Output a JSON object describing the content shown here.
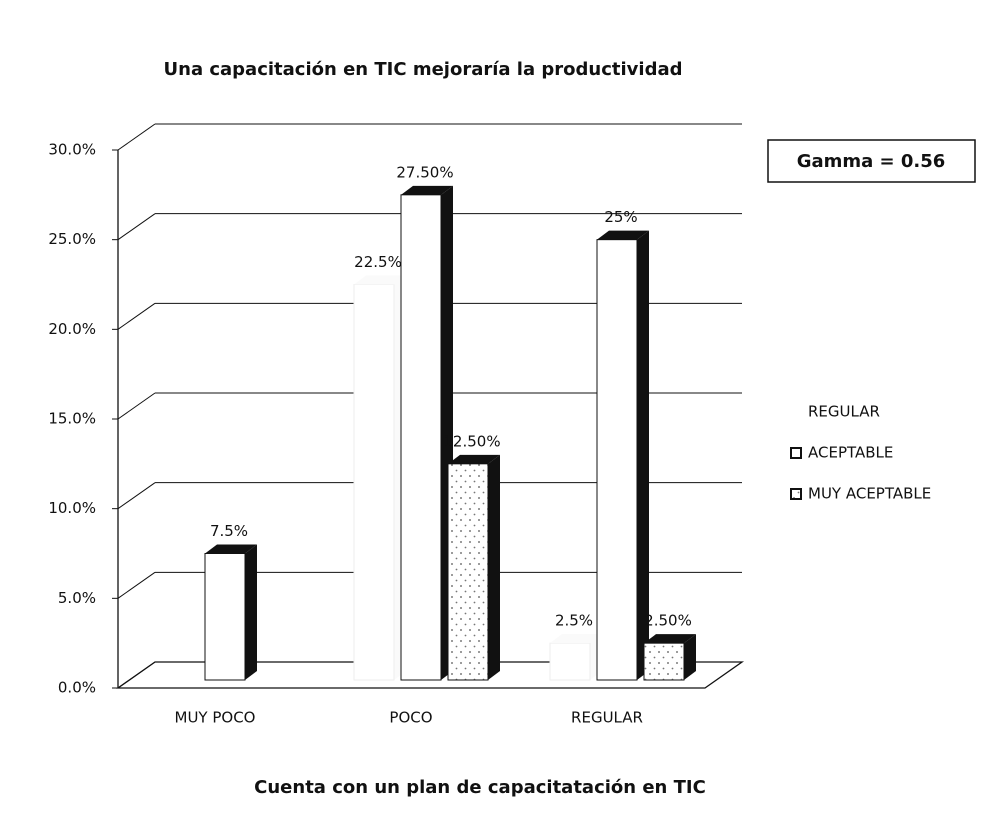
{
  "chart_data": {
    "type": "bar3d",
    "title": "Una capacitación en TIC mejoraría la productividad",
    "x_label": "Cuenta con un plan de capacitatación en TIC",
    "annotation": "Gamma = 0.56",
    "categories": [
      "MUY POCO",
      "POCO",
      "REGULAR"
    ],
    "series": [
      {
        "name": "REGULAR",
        "color": "#ffffff",
        "values": [
          null,
          22.5,
          2.5
        ],
        "value_labels": [
          null,
          "22.5%",
          "2.5%"
        ]
      },
      {
        "name": "ACEPTABLE",
        "color": "#ffffff",
        "values": [
          7.5,
          27.5,
          25
        ],
        "value_labels": [
          "7.5%",
          "27.50%",
          "25%"
        ]
      },
      {
        "name": "MUY ACEPTABLE",
        "color": "#ffffff",
        "pattern": "dotted",
        "values": [
          null,
          12.5,
          2.5
        ],
        "value_labels": [
          null,
          "12.50%",
          "2.50%"
        ]
      }
    ],
    "ylim": [
      0,
      30
    ],
    "yticks": [
      {
        "value": 0,
        "label": "0.0%"
      },
      {
        "value": 5,
        "label": "5.0%"
      },
      {
        "value": 10,
        "label": "10.0%"
      },
      {
        "value": 15,
        "label": "15.0%"
      },
      {
        "value": 20,
        "label": "20.0%"
      },
      {
        "value": 25,
        "label": "25.0%"
      },
      {
        "value": 30,
        "label": "30.0%"
      }
    ],
    "grid": true
  }
}
